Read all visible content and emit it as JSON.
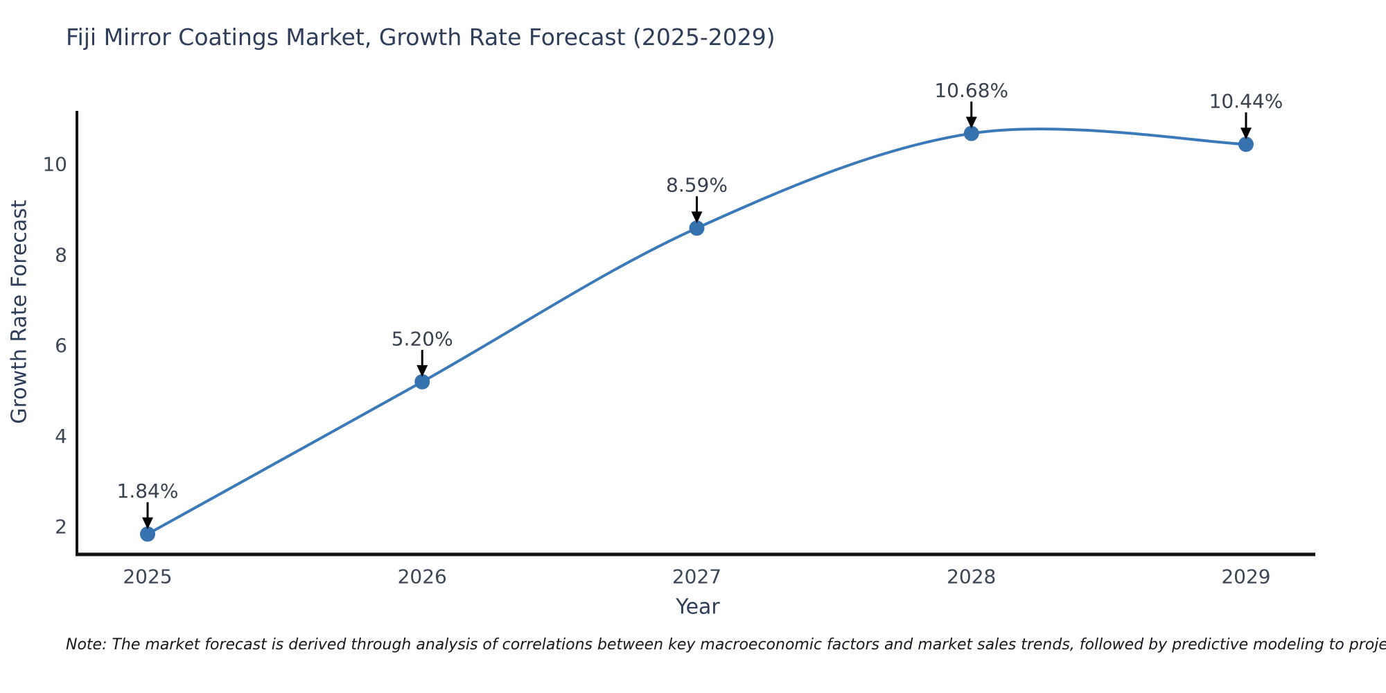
{
  "chart_data": {
    "type": "line",
    "title": "Fiji Mirror Coatings Market, Growth Rate Forecast (2025-2029)",
    "xlabel": "Year",
    "ylabel": "Growth Rate Forecast",
    "categories": [
      "2025",
      "2026",
      "2027",
      "2028",
      "2029"
    ],
    "x": [
      2025,
      2026,
      2027,
      2028,
      2029
    ],
    "values": [
      1.84,
      5.2,
      8.59,
      10.68,
      10.44
    ],
    "point_labels": [
      "1.84%",
      "5.20%",
      "8.59%",
      "10.68%",
      "10.44%"
    ],
    "yticks": [
      2,
      4,
      6,
      8,
      10
    ],
    "ylim": [
      1.36,
      11.2
    ],
    "xlim": [
      2024.74,
      2029.29
    ],
    "grid": false,
    "legend": false,
    "line_style": "spline-with-markers",
    "annotations": "value labels with downward black arrows above each point"
  },
  "colors": {
    "line": "#3a7ab8",
    "marker": "#3572ae",
    "axis": "#111111",
    "title_text": "#2e3d59",
    "tick_text": "#3d4654",
    "point_label_text": "#39414f",
    "arrow": "#000000",
    "background": "#ffffff"
  },
  "note": {
    "text": "Note: The market forecast is derived through analysis of correlations between key macroeconomic factors and market sales trends, followed by predictive modeling to project future sales"
  }
}
